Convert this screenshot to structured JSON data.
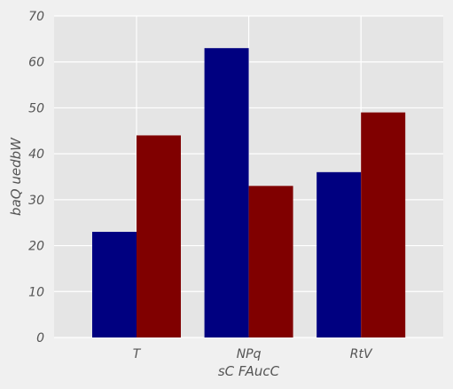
{
  "chart_data": {
    "type": "bar",
    "title": "",
    "xlabel": "sC FAucC",
    "ylabel": "baQ uedbW",
    "categories": [
      "T",
      "NPq",
      "RtV"
    ],
    "series": [
      {
        "values": [
          23,
          63,
          36
        ],
        "color": "#000080"
      },
      {
        "values": [
          44,
          33,
          49
        ],
        "color": "#800000"
      }
    ],
    "ylim": [
      0,
      70
    ],
    "yticks": [
      0,
      10,
      20,
      30,
      40,
      50,
      60,
      70
    ],
    "grid": true,
    "plot_background": "#e5e5e5",
    "grid_color": "#ffffff"
  }
}
